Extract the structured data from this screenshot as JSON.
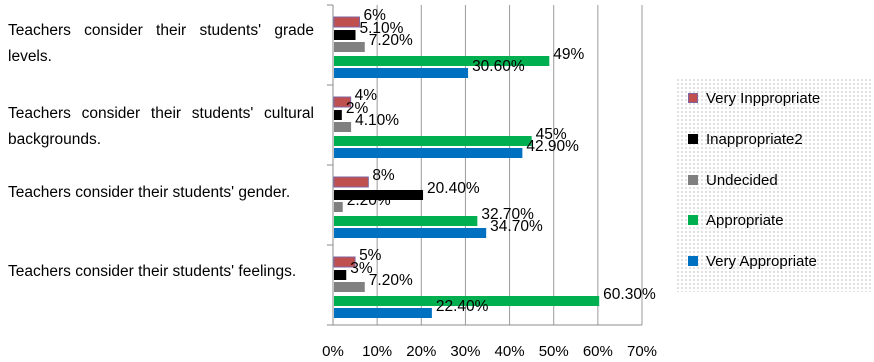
{
  "chart_data": {
    "type": "bar",
    "orientation": "horizontal",
    "categories": [
      "Teachers consider their students' grade levels.",
      "Teachers consider their students' cultural backgrounds.",
      "Teachers consider their students' gender.",
      "Teachers consider their students' feelings."
    ],
    "series": [
      {
        "name": "Very Inppropriate",
        "color": "#c0504d",
        "values": [
          6,
          4,
          8,
          5
        ],
        "labels": [
          "6%",
          "4%",
          "8%",
          "5%"
        ]
      },
      {
        "name": "Inappropriate2",
        "color": "#000000",
        "values": [
          5.1,
          2,
          20.4,
          3
        ],
        "labels": [
          "5.10%",
          "2%",
          "20.40%",
          "3%"
        ]
      },
      {
        "name": "Undecided",
        "color": "#808080",
        "values": [
          7.2,
          4.1,
          2.2,
          7.2
        ],
        "labels": [
          "7.20%",
          "4.10%",
          "2.20%",
          "7.20%"
        ]
      },
      {
        "name": "Appropriate",
        "color": "#00b050",
        "values": [
          49,
          45,
          32.7,
          60.3
        ],
        "labels": [
          "49%",
          "45%",
          "32.70%",
          "60.30%"
        ]
      },
      {
        "name": "Very Appropriate",
        "color": "#0070c0",
        "values": [
          30.6,
          42.9,
          34.7,
          22.4
        ],
        "labels": [
          "30.60%",
          "42.90%",
          "34.70%",
          "22.40%"
        ]
      }
    ],
    "xlim": [
      0,
      70
    ],
    "xticks": [
      0,
      10,
      20,
      30,
      40,
      50,
      60,
      70
    ],
    "xtick_labels": [
      "0%",
      "10%",
      "20%",
      "30%",
      "40%",
      "50%",
      "60%",
      "70%"
    ],
    "grid": true,
    "legend_position": "right",
    "legend_order": [
      "Very Inppropriate",
      "Inappropriate2",
      "Undecided",
      "Appropriate",
      "Very Appropriate"
    ]
  }
}
